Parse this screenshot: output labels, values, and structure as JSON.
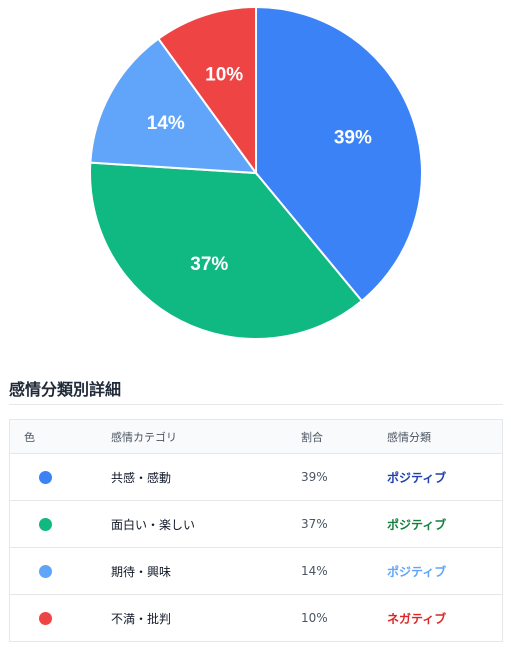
{
  "chart_data": {
    "type": "pie",
    "categories": [
      "共感・感動",
      "面白い・楽しい",
      "期待・興味",
      "不満・批判"
    ],
    "values": [
      39,
      37,
      14,
      10
    ],
    "labels": [
      "39%",
      "37%",
      "14%",
      "10%"
    ],
    "colors": [
      "#3b82f6",
      "#10b981",
      "#60a5fa",
      "#ef4444"
    ],
    "start": "12 o'clock",
    "direction": "clockwise"
  },
  "detail": {
    "title": "感情分類別詳細",
    "headers": {
      "color": "色",
      "category": "感情カテゴリ",
      "percent": "割合",
      "type": "感情分類"
    },
    "rows": [
      {
        "color": "#3b82f6",
        "category": "共感・感動",
        "percent": "39%",
        "type": "ポジティブ",
        "type_color": "#1e40af"
      },
      {
        "color": "#10b981",
        "category": "面白い・楽しい",
        "percent": "37%",
        "type": "ポジティブ",
        "type_color": "#15803d"
      },
      {
        "color": "#60a5fa",
        "category": "期待・興味",
        "percent": "14%",
        "type": "ポジティブ",
        "type_color": "#60a5fa"
      },
      {
        "color": "#ef4444",
        "category": "不満・批判",
        "percent": "10%",
        "type": "ネガティブ",
        "type_color": "#dc2626"
      }
    ]
  }
}
